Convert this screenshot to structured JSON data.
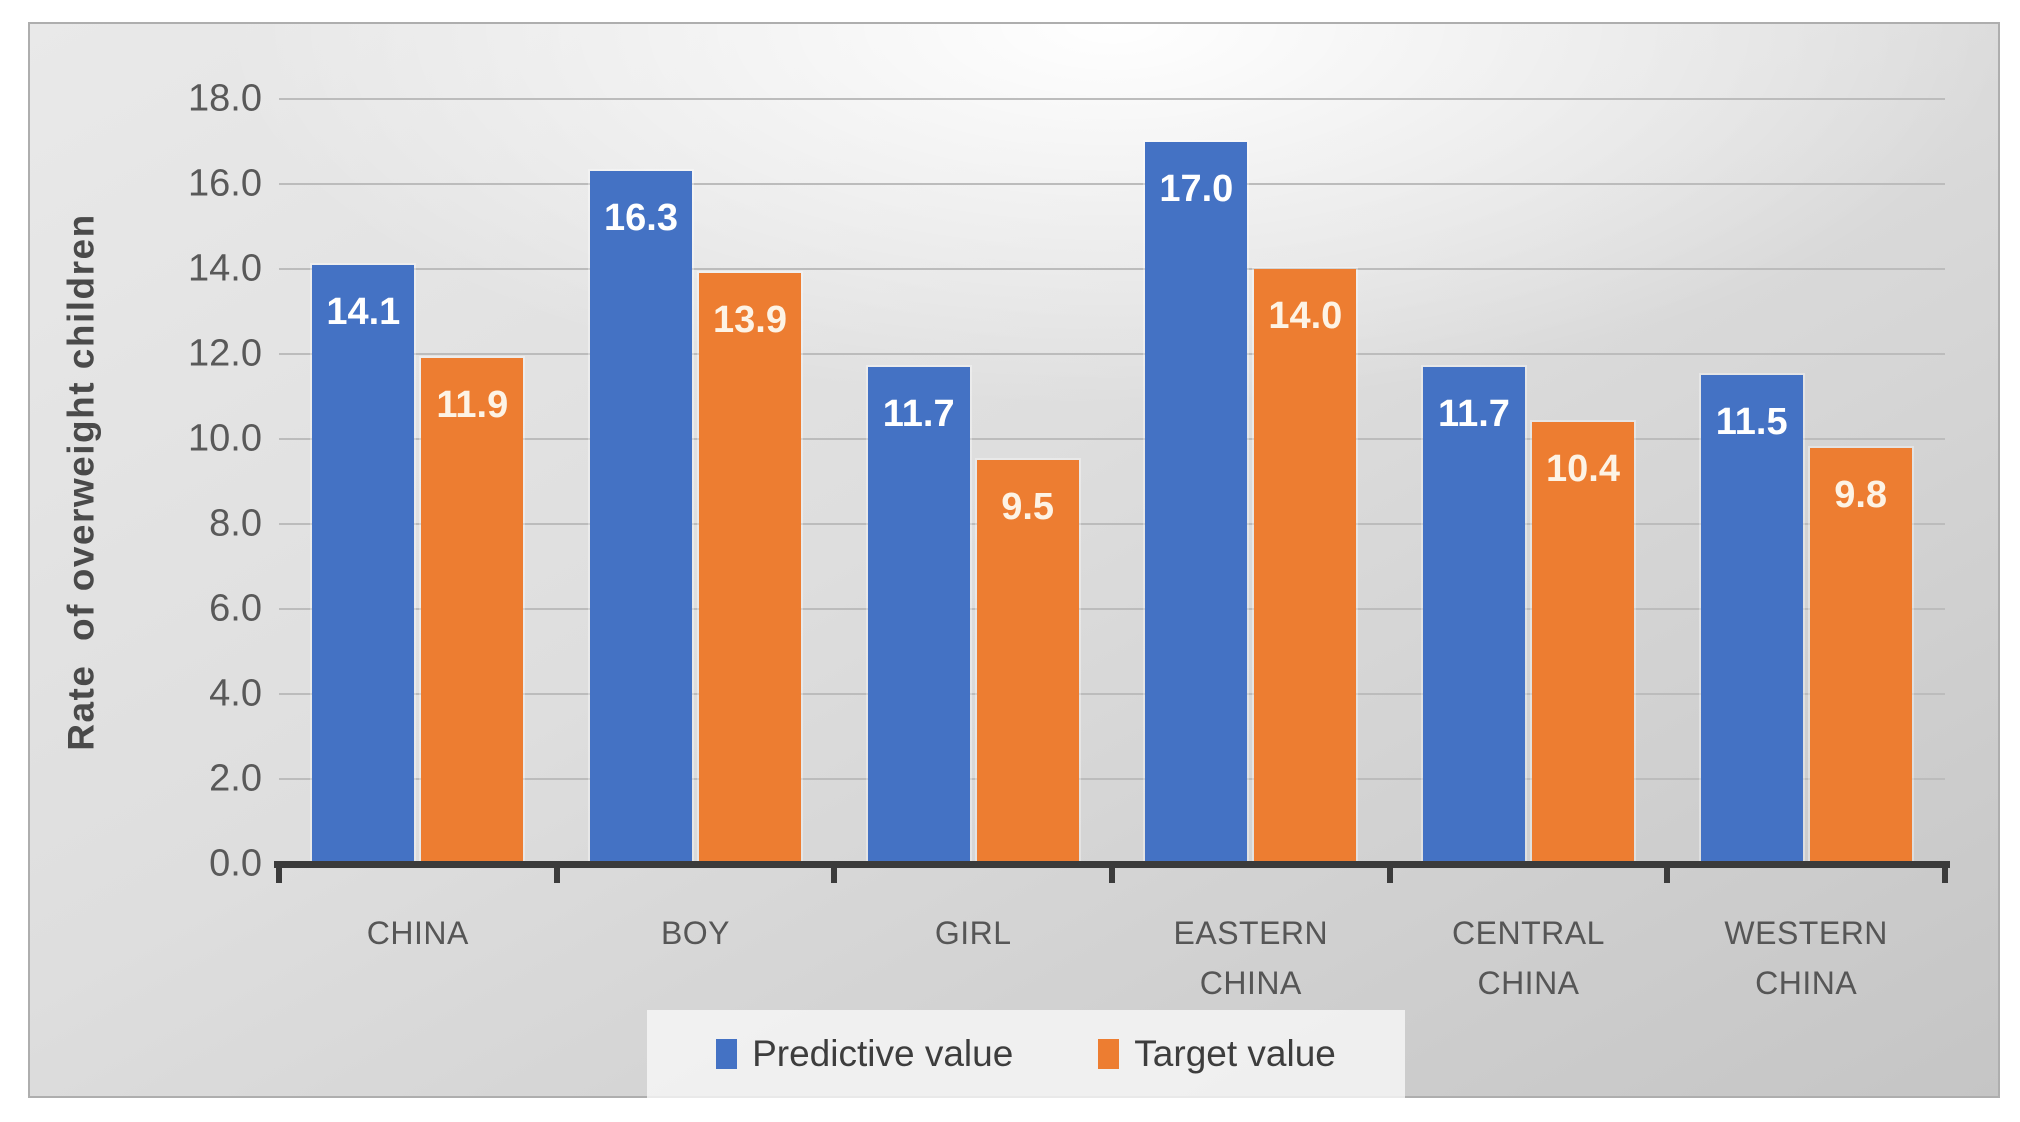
{
  "chart_data": {
    "type": "bar",
    "title": "",
    "categories": [
      "CHINA",
      "BOY",
      "GIRL",
      "EASTERN CHINA",
      "CENTRAL CHINA",
      "WESTERN CHINA"
    ],
    "series": [
      {
        "name": "Predictive value",
        "color": "#4472C4",
        "values": [
          14.1,
          16.3,
          11.7,
          17.0,
          11.7,
          11.5
        ]
      },
      {
        "name": "Target value",
        "color": "#ED7D31",
        "values": [
          11.9,
          13.9,
          9.5,
          14.0,
          10.4,
          9.8
        ]
      }
    ],
    "data_labels": [
      [
        "14.1",
        "16.3",
        "11.7",
        "17.0",
        "11.7",
        "11.5"
      ],
      [
        "11.9",
        "13.9",
        "9.5",
        "14.0",
        "10.4",
        "9.8"
      ]
    ],
    "xlabel": "",
    "ylabel": "Rate  of overweight children",
    "ylim": [
      0,
      18
    ],
    "ytick_step": 2,
    "yticks": [
      "18.0",
      "16.0",
      "14.0",
      "12.0",
      "10.0",
      "8.0",
      "6.0",
      "4.0",
      "2.0",
      "0.0"
    ],
    "grid": true,
    "legend_position": "bottom"
  }
}
